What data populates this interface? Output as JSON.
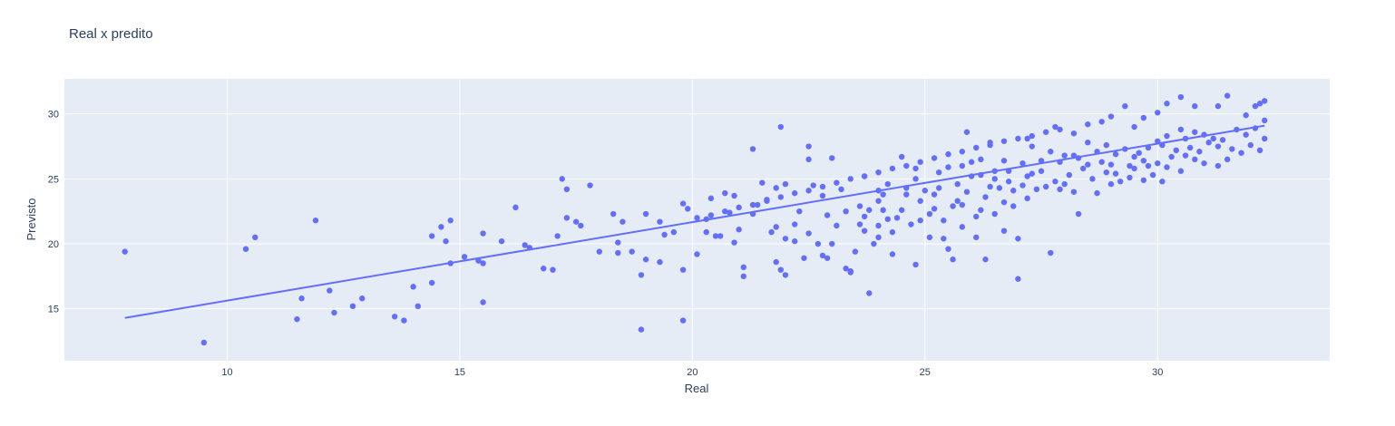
{
  "chart_data": {
    "type": "scatter",
    "title": "Real x predito",
    "xlabel": "Real",
    "ylabel": "Previsto",
    "xlim": [
      6.5,
      33.7
    ],
    "ylim": [
      11.0,
      32.7
    ],
    "xticks": [
      "10",
      "15",
      "20",
      "25",
      "30"
    ],
    "yticks": [
      "15",
      "20",
      "25",
      "30"
    ],
    "grid": true,
    "marker_color": "#636efa",
    "plot_bgcolor": "#e5ecf6",
    "trendline": {
      "x": [
        7.8,
        32.3
      ],
      "y": [
        14.3,
        29.1
      ]
    },
    "points": [
      [
        7.8,
        19.4
      ],
      [
        9.5,
        12.4
      ],
      [
        10.4,
        19.6
      ],
      [
        10.6,
        20.5
      ],
      [
        11.5,
        14.2
      ],
      [
        11.6,
        15.8
      ],
      [
        11.9,
        21.8
      ],
      [
        12.2,
        16.4
      ],
      [
        12.3,
        14.7
      ],
      [
        12.7,
        15.2
      ],
      [
        12.9,
        15.8
      ],
      [
        13.6,
        14.4
      ],
      [
        13.8,
        14.1
      ],
      [
        14.0,
        16.7
      ],
      [
        14.1,
        15.2
      ],
      [
        14.4,
        20.6
      ],
      [
        14.4,
        17.0
      ],
      [
        14.6,
        21.3
      ],
      [
        14.7,
        20.2
      ],
      [
        14.8,
        21.8
      ],
      [
        14.8,
        18.5
      ],
      [
        15.1,
        19.0
      ],
      [
        15.4,
        18.7
      ],
      [
        15.5,
        18.5
      ],
      [
        15.5,
        20.8
      ],
      [
        15.5,
        15.5
      ],
      [
        15.9,
        20.2
      ],
      [
        16.2,
        22.8
      ],
      [
        16.4,
        19.9
      ],
      [
        16.5,
        19.7
      ],
      [
        16.8,
        18.1
      ],
      [
        17.0,
        18.0
      ],
      [
        17.1,
        20.6
      ],
      [
        17.2,
        25.0
      ],
      [
        17.3,
        24.2
      ],
      [
        17.3,
        22.0
      ],
      [
        17.5,
        21.7
      ],
      [
        17.6,
        21.4
      ],
      [
        17.8,
        24.5
      ],
      [
        18.0,
        19.4
      ],
      [
        18.3,
        22.3
      ],
      [
        18.4,
        19.3
      ],
      [
        18.4,
        20.1
      ],
      [
        18.5,
        21.7
      ],
      [
        18.7,
        19.4
      ],
      [
        18.9,
        17.6
      ],
      [
        18.9,
        13.4
      ],
      [
        19.0,
        18.8
      ],
      [
        19.0,
        22.3
      ],
      [
        19.3,
        21.7
      ],
      [
        19.3,
        18.6
      ],
      [
        19.4,
        20.7
      ],
      [
        19.6,
        20.9
      ],
      [
        19.8,
        23.1
      ],
      [
        19.8,
        18.0
      ],
      [
        19.8,
        14.1
      ],
      [
        19.9,
        22.7
      ],
      [
        20.1,
        19.2
      ],
      [
        20.3,
        21.9
      ],
      [
        20.3,
        20.9
      ],
      [
        20.4,
        23.5
      ],
      [
        20.5,
        20.6
      ],
      [
        20.6,
        20.6
      ],
      [
        20.7,
        23.9
      ],
      [
        20.8,
        22.4
      ],
      [
        20.9,
        23.7
      ],
      [
        20.9,
        20.1
      ],
      [
        21.0,
        21.1
      ],
      [
        21.1,
        17.5
      ],
      [
        21.1,
        18.2
      ],
      [
        21.3,
        27.3
      ],
      [
        21.3,
        22.3
      ],
      [
        21.4,
        23.0
      ],
      [
        21.5,
        24.7
      ],
      [
        21.6,
        23.4
      ],
      [
        21.7,
        20.9
      ],
      [
        21.8,
        24.3
      ],
      [
        21.8,
        21.3
      ],
      [
        21.8,
        18.6
      ],
      [
        21.9,
        18.0
      ],
      [
        21.9,
        29.0
      ],
      [
        22.0,
        24.6
      ],
      [
        22.0,
        17.6
      ],
      [
        22.0,
        20.4
      ],
      [
        22.2,
        21.5
      ],
      [
        22.2,
        20.2
      ],
      [
        22.3,
        22.5
      ],
      [
        22.4,
        18.9
      ],
      [
        22.5,
        27.5
      ],
      [
        22.5,
        26.5
      ],
      [
        22.5,
        20.8
      ],
      [
        22.6,
        24.5
      ],
      [
        22.7,
        20.0
      ],
      [
        22.8,
        23.7
      ],
      [
        22.8,
        19.1
      ],
      [
        22.9,
        18.9
      ],
      [
        22.9,
        22.2
      ],
      [
        23.0,
        26.6
      ],
      [
        23.0,
        20.0
      ],
      [
        23.1,
        21.4
      ],
      [
        23.2,
        24.2
      ],
      [
        23.3,
        22.5
      ],
      [
        23.3,
        18.1
      ],
      [
        23.4,
        17.8
      ],
      [
        23.4,
        17.9
      ],
      [
        23.5,
        19.4
      ],
      [
        23.6,
        22.9
      ],
      [
        23.6,
        21.5
      ],
      [
        23.7,
        25.2
      ],
      [
        23.7,
        22.1
      ],
      [
        23.7,
        21.0
      ],
      [
        23.8,
        16.2
      ],
      [
        23.8,
        22.6
      ],
      [
        23.9,
        20.0
      ],
      [
        24.0,
        20.5
      ],
      [
        24.0,
        23.3
      ],
      [
        24.0,
        24.1
      ],
      [
        24.0,
        21.4
      ],
      [
        24.1,
        23.8
      ],
      [
        24.1,
        22.6
      ],
      [
        24.2,
        24.6
      ],
      [
        24.2,
        21.9
      ],
      [
        24.3,
        20.9
      ],
      [
        24.3,
        19.2
      ],
      [
        24.4,
        22.0
      ],
      [
        24.5,
        26.7
      ],
      [
        24.5,
        22.6
      ],
      [
        24.6,
        24.3
      ],
      [
        24.6,
        23.8
      ],
      [
        24.7,
        21.5
      ],
      [
        24.8,
        18.4
      ],
      [
        24.8,
        25.8
      ],
      [
        24.8,
        25.0
      ],
      [
        24.9,
        23.3
      ],
      [
        24.9,
        21.8
      ],
      [
        25.0,
        24.1
      ],
      [
        25.1,
        20.5
      ],
      [
        25.1,
        22.3
      ],
      [
        25.2,
        23.8
      ],
      [
        25.2,
        22.7
      ],
      [
        25.3,
        25.5
      ],
      [
        25.3,
        24.3
      ],
      [
        25.4,
        21.8
      ],
      [
        25.4,
        20.4
      ],
      [
        25.5,
        19.6
      ],
      [
        25.5,
        25.9
      ],
      [
        25.6,
        22.9
      ],
      [
        25.6,
        18.8
      ],
      [
        25.7,
        23.3
      ],
      [
        25.7,
        24.6
      ],
      [
        25.8,
        26.0
      ],
      [
        25.8,
        23.0
      ],
      [
        25.8,
        21.3
      ],
      [
        25.9,
        28.6
      ],
      [
        25.9,
        24.0
      ],
      [
        26.0,
        26.3
      ],
      [
        26.0,
        25.2
      ],
      [
        26.1,
        20.5
      ],
      [
        26.1,
        22.1
      ],
      [
        26.2,
        25.3
      ],
      [
        26.2,
        26.5
      ],
      [
        26.2,
        22.6
      ],
      [
        26.3,
        18.8
      ],
      [
        26.3,
        23.6
      ],
      [
        26.4,
        24.4
      ],
      [
        26.4,
        27.8
      ],
      [
        26.5,
        22.3
      ],
      [
        26.5,
        25.6
      ],
      [
        26.5,
        25.0
      ],
      [
        26.6,
        24.3
      ],
      [
        26.7,
        23.2
      ],
      [
        26.7,
        21.0
      ],
      [
        26.7,
        26.4
      ],
      [
        26.8,
        24.8
      ],
      [
        26.8,
        25.6
      ],
      [
        26.9,
        24.1
      ],
      [
        26.9,
        22.9
      ],
      [
        27.0,
        20.4
      ],
      [
        27.0,
        17.3
      ],
      [
        27.1,
        26.2
      ],
      [
        27.1,
        24.5
      ],
      [
        27.2,
        25.2
      ],
      [
        27.2,
        23.5
      ],
      [
        27.2,
        28.1
      ],
      [
        27.3,
        25.4
      ],
      [
        27.3,
        27.5
      ],
      [
        27.4,
        24.2
      ],
      [
        27.5,
        26.4
      ],
      [
        27.5,
        25.6
      ],
      [
        27.6,
        24.4
      ],
      [
        27.7,
        27.1
      ],
      [
        27.7,
        19.3
      ],
      [
        27.8,
        29.0
      ],
      [
        27.8,
        24.8
      ],
      [
        27.9,
        24.2
      ],
      [
        27.9,
        26.3
      ],
      [
        28.0,
        26.8
      ],
      [
        28.0,
        24.6
      ],
      [
        28.1,
        25.3
      ],
      [
        28.2,
        26.8
      ],
      [
        28.2,
        24.0
      ],
      [
        28.3,
        26.6
      ],
      [
        28.3,
        22.3
      ],
      [
        28.4,
        25.8
      ],
      [
        28.5,
        26.1
      ],
      [
        28.5,
        27.8
      ],
      [
        28.6,
        25.0
      ],
      [
        28.7,
        27.1
      ],
      [
        28.7,
        23.9
      ],
      [
        28.8,
        26.3
      ],
      [
        28.9,
        25.5
      ],
      [
        28.9,
        27.6
      ],
      [
        29.0,
        24.6
      ],
      [
        29.0,
        26.1
      ],
      [
        29.1,
        26.9
      ],
      [
        29.1,
        25.4
      ],
      [
        29.2,
        24.8
      ],
      [
        29.3,
        27.3
      ],
      [
        29.4,
        26.0
      ],
      [
        29.4,
        25.1
      ],
      [
        29.5,
        26.7
      ],
      [
        29.5,
        25.8
      ],
      [
        29.6,
        27.0
      ],
      [
        29.7,
        24.9
      ],
      [
        29.7,
        26.4
      ],
      [
        29.8,
        27.4
      ],
      [
        29.8,
        26.0
      ],
      [
        29.9,
        25.3
      ],
      [
        30.0,
        27.9
      ],
      [
        30.0,
        26.2
      ],
      [
        30.1,
        24.8
      ],
      [
        30.1,
        27.6
      ],
      [
        30.2,
        28.3
      ],
      [
        30.2,
        25.9
      ],
      [
        30.3,
        26.7
      ],
      [
        30.4,
        27.2
      ],
      [
        30.5,
        28.8
      ],
      [
        30.5,
        25.6
      ],
      [
        30.6,
        28.1
      ],
      [
        30.6,
        26.8
      ],
      [
        30.7,
        27.4
      ],
      [
        30.8,
        28.6
      ],
      [
        30.8,
        26.5
      ],
      [
        30.9,
        27.1
      ],
      [
        31.0,
        28.4
      ],
      [
        31.0,
        26.2
      ],
      [
        31.1,
        27.8
      ],
      [
        31.2,
        28.1
      ],
      [
        31.3,
        26.0
      ],
      [
        31.3,
        27.5
      ],
      [
        31.4,
        28.0
      ],
      [
        31.5,
        26.5
      ],
      [
        31.6,
        27.3
      ],
      [
        31.7,
        28.8
      ],
      [
        31.8,
        27.0
      ],
      [
        31.9,
        28.4
      ],
      [
        32.0,
        27.6
      ],
      [
        32.1,
        28.9
      ],
      [
        32.2,
        27.2
      ],
      [
        32.3,
        28.1
      ],
      [
        32.3,
        31.0
      ],
      [
        32.3,
        29.5
      ],
      [
        32.2,
        30.8
      ],
      [
        32.1,
        30.6
      ],
      [
        31.9,
        29.9
      ],
      [
        31.5,
        31.4
      ],
      [
        31.3,
        30.6
      ],
      [
        30.8,
        30.6
      ],
      [
        30.5,
        31.3
      ],
      [
        30.2,
        30.8
      ],
      [
        30.0,
        30.1
      ],
      [
        29.7,
        29.7
      ],
      [
        29.5,
        29.0
      ],
      [
        29.3,
        30.6
      ],
      [
        29.0,
        29.8
      ],
      [
        28.8,
        29.4
      ],
      [
        28.5,
        29.2
      ],
      [
        28.2,
        28.5
      ],
      [
        27.9,
        28.8
      ],
      [
        27.6,
        28.6
      ],
      [
        27.3,
        28.3
      ],
      [
        27.0,
        28.1
      ],
      [
        26.7,
        27.9
      ],
      [
        26.4,
        27.6
      ],
      [
        26.1,
        27.4
      ],
      [
        25.8,
        27.1
      ],
      [
        25.5,
        26.9
      ],
      [
        25.2,
        26.6
      ],
      [
        24.9,
        26.3
      ],
      [
        24.6,
        26.0
      ],
      [
        24.3,
        25.8
      ],
      [
        24.0,
        25.5
      ],
      [
        23.7,
        25.2
      ],
      [
        23.4,
        25.0
      ],
      [
        23.1,
        24.7
      ],
      [
        22.8,
        24.4
      ],
      [
        22.5,
        24.1
      ],
      [
        22.2,
        23.9
      ],
      [
        21.9,
        23.6
      ],
      [
        21.6,
        23.3
      ],
      [
        21.3,
        23.0
      ],
      [
        21.0,
        22.8
      ],
      [
        20.7,
        22.5
      ],
      [
        20.4,
        22.2
      ],
      [
        20.1,
        22.0
      ]
    ]
  }
}
